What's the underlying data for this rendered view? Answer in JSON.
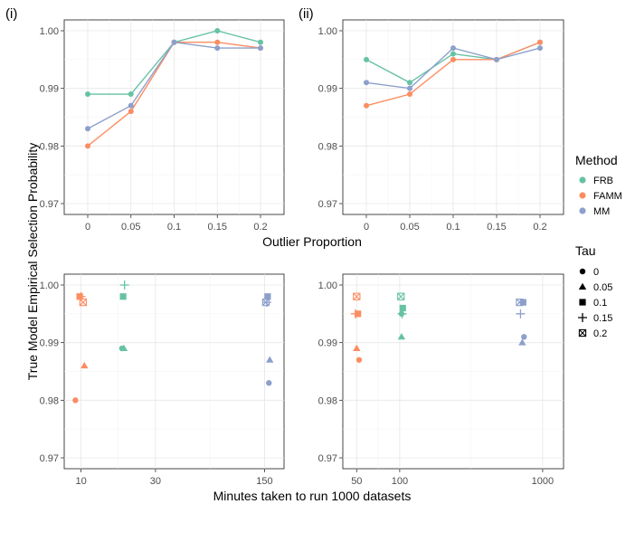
{
  "figure": {
    "shared_ylabel": "True Model Empirical Selection Probability",
    "top_xlabel": "Outlier Proportion",
    "bottom_xlabel": "Minutes taken to run 1000 datasets"
  },
  "legend": {
    "method_title": "Method",
    "methods": [
      {
        "name": "FRB",
        "color": "#66c2a5"
      },
      {
        "name": "FAMM",
        "color": "#fc8d62"
      },
      {
        "name": "MM",
        "color": "#8da0cb"
      }
    ],
    "tau_title": "Tau",
    "taus": [
      {
        "name": "0",
        "shape": "circle"
      },
      {
        "name": "0.05",
        "shape": "triangle"
      },
      {
        "name": "0.1",
        "shape": "square"
      },
      {
        "name": "0.15",
        "shape": "plus"
      },
      {
        "name": "0.2",
        "shape": "boxed-x"
      }
    ]
  },
  "chart_data": [
    {
      "panel": "(i)",
      "type": "line",
      "x": [
        "0",
        "0.05",
        "0.1",
        "0.15",
        "0.2"
      ],
      "ylim": [
        0.97,
        1.0
      ],
      "yticks": [
        "0.97",
        "0.98",
        "0.99",
        "1.00"
      ],
      "series": [
        {
          "name": "FRB",
          "values": [
            0.989,
            0.989,
            0.998,
            1.0,
            0.998
          ]
        },
        {
          "name": "FAMM",
          "values": [
            0.98,
            0.986,
            0.998,
            0.998,
            0.997
          ]
        },
        {
          "name": "MM",
          "values": [
            0.983,
            0.987,
            0.998,
            0.997,
            0.997
          ]
        }
      ]
    },
    {
      "panel": "(ii)",
      "type": "line",
      "x": [
        "0",
        "0.05",
        "0.1",
        "0.15",
        "0.2"
      ],
      "ylim": [
        0.97,
        1.0
      ],
      "yticks": [
        "0.97",
        "0.98",
        "0.99",
        "1.00"
      ],
      "series": [
        {
          "name": "FRB",
          "values": [
            0.995,
            0.991,
            0.996,
            0.995,
            0.998
          ]
        },
        {
          "name": "FAMM",
          "values": [
            0.987,
            0.989,
            0.995,
            0.995,
            0.998
          ]
        },
        {
          "name": "MM",
          "values": [
            0.991,
            0.99,
            0.997,
            0.995,
            0.997
          ]
        }
      ]
    },
    {
      "panel": "bottom-left",
      "type": "scatter",
      "x_scale": "log",
      "xlim": [
        7.8,
        200
      ],
      "xticks": [
        "10",
        "30",
        "150"
      ],
      "ylim": [
        0.97,
        1.0
      ],
      "yticks": [
        "0.97",
        "0.98",
        "0.99",
        "1.00"
      ],
      "points": [
        {
          "method": "FAMM",
          "tau": "0",
          "x": 9.2,
          "y": 0.98
        },
        {
          "method": "FAMM",
          "tau": "0.05",
          "x": 10.5,
          "y": 0.986
        },
        {
          "method": "FAMM",
          "tau": "0.1",
          "x": 9.8,
          "y": 0.998
        },
        {
          "method": "FAMM",
          "tau": "0.15",
          "x": 10.0,
          "y": 0.998
        },
        {
          "method": "FAMM",
          "tau": "0.2",
          "x": 10.3,
          "y": 0.997
        },
        {
          "method": "FRB",
          "tau": "0",
          "x": 18.3,
          "y": 0.989
        },
        {
          "method": "FRB",
          "tau": "0.05",
          "x": 18.8,
          "y": 0.989
        },
        {
          "method": "FRB",
          "tau": "0.1",
          "x": 18.6,
          "y": 0.998
        },
        {
          "method": "FRB",
          "tau": "0.15",
          "x": 19.0,
          "y": 1.0
        },
        {
          "method": "MM",
          "tau": "0",
          "x": 160,
          "y": 0.983
        },
        {
          "method": "MM",
          "tau": "0.05",
          "x": 162,
          "y": 0.987
        },
        {
          "method": "MM",
          "tau": "0.1",
          "x": 157,
          "y": 0.998
        },
        {
          "method": "MM",
          "tau": "0.15",
          "x": 155,
          "y": 0.997
        },
        {
          "method": "MM",
          "tau": "0.2",
          "x": 153,
          "y": 0.997
        }
      ]
    },
    {
      "panel": "bottom-right",
      "type": "scatter",
      "x_scale": "log",
      "xlim": [
        40,
        1400
      ],
      "xticks": [
        "50",
        "100",
        "1000"
      ],
      "ylim": [
        0.97,
        1.0
      ],
      "yticks": [
        "0.97",
        "0.98",
        "0.99",
        "1.00"
      ],
      "points": [
        {
          "method": "FAMM",
          "tau": "0",
          "x": 52,
          "y": 0.987
        },
        {
          "method": "FAMM",
          "tau": "0.05",
          "x": 50,
          "y": 0.989
        },
        {
          "method": "FAMM",
          "tau": "0.1",
          "x": 51,
          "y": 0.995
        },
        {
          "method": "FAMM",
          "tau": "0.15",
          "x": 49,
          "y": 0.995
        },
        {
          "method": "FAMM",
          "tau": "0.2",
          "x": 50,
          "y": 0.998
        },
        {
          "method": "FRB",
          "tau": "0",
          "x": 103,
          "y": 0.995
        },
        {
          "method": "FRB",
          "tau": "0.05",
          "x": 103,
          "y": 0.991
        },
        {
          "method": "FRB",
          "tau": "0.1",
          "x": 105,
          "y": 0.996
        },
        {
          "method": "FRB",
          "tau": "0.15",
          "x": 104,
          "y": 0.995
        },
        {
          "method": "FRB",
          "tau": "0.2",
          "x": 102,
          "y": 0.998
        },
        {
          "method": "MM",
          "tau": "0",
          "x": 740,
          "y": 0.991
        },
        {
          "method": "MM",
          "tau": "0.05",
          "x": 720,
          "y": 0.99
        },
        {
          "method": "MM",
          "tau": "0.1",
          "x": 730,
          "y": 0.997
        },
        {
          "method": "MM",
          "tau": "0.15",
          "x": 700,
          "y": 0.995
        },
        {
          "method": "MM",
          "tau": "0.2",
          "x": 690,
          "y": 0.997
        }
      ]
    }
  ]
}
